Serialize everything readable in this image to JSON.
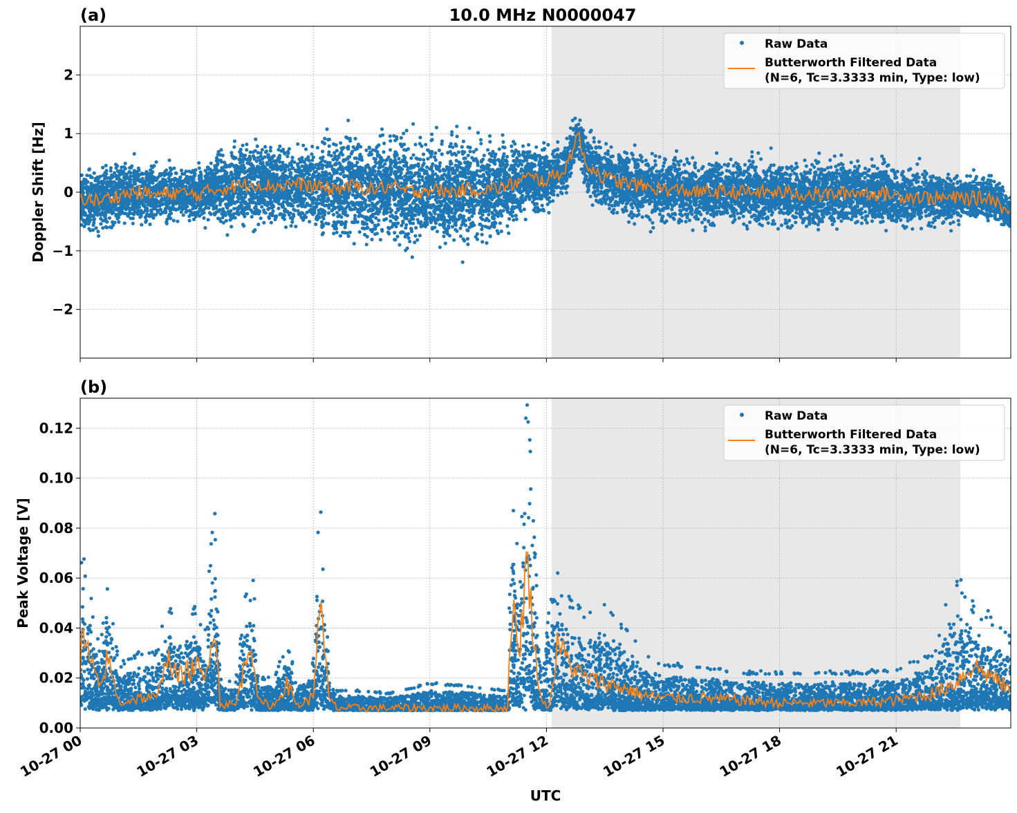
{
  "chart_data": [
    {
      "type": "scatter",
      "panel_label": "(a)",
      "title": "10.0 MHz N0000047",
      "ylabel": "Doppler Shift [Hz]",
      "xlabel": "",
      "xlim_hours": [
        0,
        23.95
      ],
      "ylim": [
        -2.83,
        2.83
      ],
      "yticks": [
        -2,
        -1,
        0,
        1,
        2
      ],
      "ytick_labels": [
        "−2",
        "−1",
        "0",
        "1",
        "2"
      ],
      "grid": true,
      "legend": {
        "placement": "top-right",
        "entries": [
          "Raw Data",
          "Butterworth Filtered Data",
          "(N=6, Tc=3.3333 min, Type: low)"
        ]
      },
      "shaded_region_hours": [
        12.13,
        22.65
      ],
      "t_hours": [
        0,
        0.5,
        1,
        1.5,
        2,
        2.5,
        3,
        3.5,
        4,
        4.5,
        5,
        5.5,
        6,
        6.5,
        7,
        7.5,
        8,
        8.5,
        9,
        9.5,
        10,
        10.5,
        11,
        11.5,
        12,
        12.5,
        12.8,
        13,
        13.5,
        14,
        14.5,
        15,
        16,
        17,
        18,
        19,
        20,
        21,
        22,
        22.5,
        23,
        23.5,
        23.95
      ],
      "filtered": [
        -0.1,
        -0.15,
        -0.05,
        0.0,
        -0.05,
        0.0,
        -0.05,
        0.05,
        0.1,
        0.15,
        0.1,
        0.15,
        0.1,
        0.05,
        0.1,
        0.05,
        0.1,
        0.0,
        0.05,
        0.0,
        0.05,
        0.05,
        0.1,
        0.25,
        0.2,
        0.4,
        1.0,
        0.5,
        0.25,
        0.15,
        0.1,
        0.05,
        0.0,
        0.0,
        0.0,
        -0.05,
        0.0,
        -0.05,
        -0.1,
        -0.1,
        -0.1,
        -0.1,
        -0.4
      ],
      "raw_spread": [
        0.8,
        0.8,
        0.9,
        0.8,
        0.8,
        0.7,
        0.7,
        1.0,
        1.1,
        1.1,
        1.1,
        1.0,
        1.0,
        1.4,
        1.4,
        1.4,
        1.4,
        1.4,
        1.4,
        1.4,
        1.4,
        1.4,
        1.1,
        0.9,
        0.8,
        0.7,
        0.6,
        0.9,
        0.9,
        0.9,
        0.9,
        0.9,
        0.85,
        0.85,
        0.9,
        0.9,
        0.85,
        0.85,
        0.75,
        0.65,
        0.6,
        0.6,
        0.5
      ],
      "series": [
        {
          "name": "Raw Data",
          "color": "#1f77b4"
        },
        {
          "name": "Butterworth Filtered Data",
          "color": "#ff7f0e"
        }
      ]
    },
    {
      "type": "scatter",
      "panel_label": "(b)",
      "title": "",
      "ylabel": "Peak Voltage [V]",
      "xlabel": "UTC",
      "xlim_hours": [
        0,
        23.95
      ],
      "ylim": [
        0,
        0.132
      ],
      "yticks": [
        0,
        0.02,
        0.04,
        0.06,
        0.08,
        0.1,
        0.12
      ],
      "ytick_labels": [
        "0.00",
        "0.02",
        "0.04",
        "0.06",
        "0.08",
        "0.10",
        "0.12"
      ],
      "xticks_hours": [
        0,
        3,
        6,
        9,
        12,
        15,
        18,
        21
      ],
      "xtick_labels": [
        "10-27 00",
        "10-27 03",
        "10-27 06",
        "10-27 09",
        "10-27 12",
        "10-27 15",
        "10-27 18",
        "10-27 21"
      ],
      "grid": true,
      "legend": {
        "placement": "top-right",
        "entries": [
          "Raw Data",
          "Butterworth Filtered Data",
          "(N=6, Tc=3.3333 min, Type: low)"
        ]
      },
      "shaded_region_hours": [
        12.13,
        22.65
      ],
      "t_hours": [
        0,
        0.05,
        0.5,
        0.7,
        1,
        1.5,
        2,
        2.2,
        2.5,
        3,
        3.2,
        3.45,
        3.6,
        4,
        4.4,
        4.6,
        5,
        5.3,
        5.6,
        6,
        6.15,
        6.4,
        6.6,
        7,
        8,
        9,
        10,
        11,
        11.1,
        11.3,
        11.5,
        11.7,
        11.9,
        12.1,
        12.3,
        12.6,
        13,
        13.5,
        14,
        14.5,
        15,
        16,
        17,
        18,
        19,
        20,
        21,
        22,
        22.5,
        23,
        23.5,
        23.95
      ],
      "filtered": [
        0.02,
        0.038,
        0.015,
        0.028,
        0.01,
        0.012,
        0.012,
        0.03,
        0.02,
        0.025,
        0.018,
        0.044,
        0.01,
        0.009,
        0.036,
        0.01,
        0.009,
        0.018,
        0.009,
        0.012,
        0.053,
        0.012,
        0.008,
        0.008,
        0.008,
        0.008,
        0.008,
        0.008,
        0.05,
        0.03,
        0.068,
        0.03,
        0.009,
        0.01,
        0.035,
        0.025,
        0.02,
        0.018,
        0.016,
        0.013,
        0.012,
        0.012,
        0.011,
        0.01,
        0.01,
        0.01,
        0.011,
        0.014,
        0.018,
        0.025,
        0.02,
        0.015
      ],
      "raw_max": [
        0.06,
        0.069,
        0.03,
        0.056,
        0.025,
        0.03,
        0.03,
        0.05,
        0.04,
        0.045,
        0.035,
        0.087,
        0.02,
        0.018,
        0.069,
        0.02,
        0.02,
        0.032,
        0.02,
        0.025,
        0.087,
        0.025,
        0.015,
        0.015,
        0.014,
        0.018,
        0.017,
        0.015,
        0.084,
        0.07,
        0.126,
        0.07,
        0.02,
        0.078,
        0.058,
        0.05,
        0.045,
        0.048,
        0.04,
        0.03,
        0.025,
        0.024,
        0.022,
        0.022,
        0.022,
        0.022,
        0.023,
        0.03,
        0.062,
        0.045,
        0.042,
        0.035
      ],
      "series": [
        {
          "name": "Raw Data",
          "color": "#1f77b4"
        },
        {
          "name": "Butterworth Filtered Data",
          "color": "#ff7f0e"
        }
      ]
    }
  ]
}
